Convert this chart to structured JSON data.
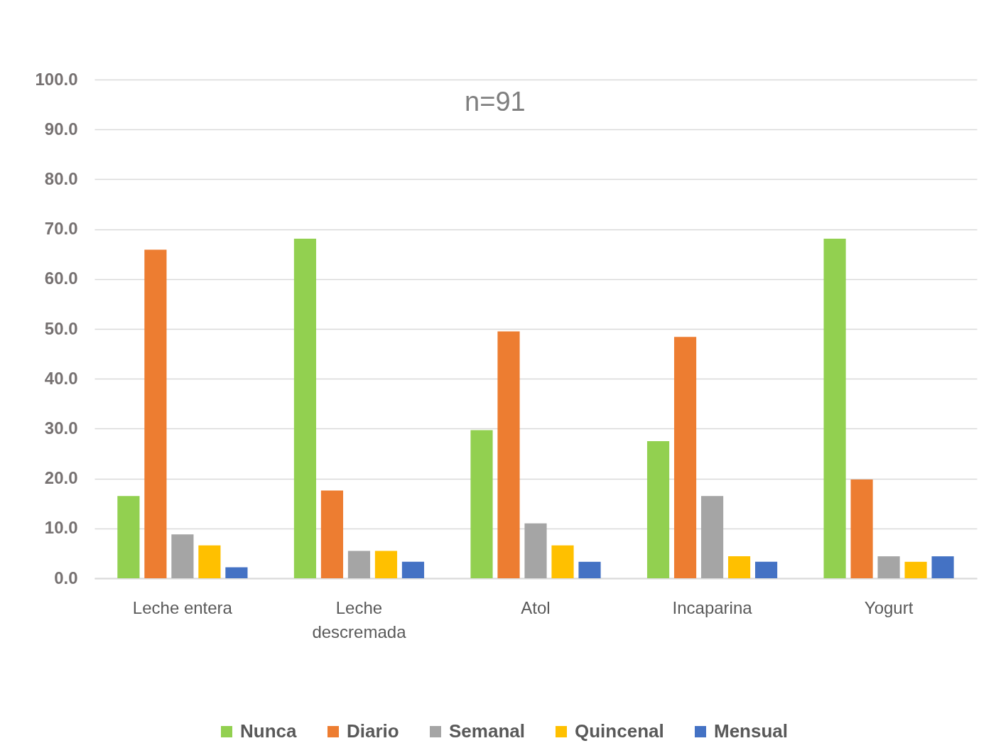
{
  "chart_data": {
    "type": "bar",
    "categories": [
      "Leche entera",
      "Leche descremada",
      "Atol",
      "Incaparina",
      "Yogurt"
    ],
    "series": [
      {
        "name": "Nunca",
        "color": "#92d050",
        "values": [
          16.5,
          68.1,
          29.7,
          27.5,
          68.1
        ]
      },
      {
        "name": "Diario",
        "color": "#ed7d31",
        "values": [
          65.9,
          17.6,
          49.5,
          48.4,
          19.8
        ]
      },
      {
        "name": "Semanal",
        "color": "#a5a5a5",
        "values": [
          8.8,
          5.5,
          11.0,
          16.5,
          4.4
        ]
      },
      {
        "name": "Quincenal",
        "color": "#ffc000",
        "values": [
          6.6,
          5.5,
          6.6,
          4.4,
          3.3
        ]
      },
      {
        "name": "Mensual",
        "color": "#4472c4",
        "values": [
          2.2,
          3.3,
          3.3,
          3.3,
          4.4
        ]
      }
    ],
    "ylim": [
      0,
      100
    ],
    "yticks": [
      {
        "value": 0,
        "label": "0.0"
      },
      {
        "value": 10,
        "label": "10.0"
      },
      {
        "value": 20,
        "label": "20.0"
      },
      {
        "value": 30,
        "label": "30.0"
      },
      {
        "value": 40,
        "label": "40.0"
      },
      {
        "value": 50,
        "label": "50.0"
      },
      {
        "value": 60,
        "label": "60.0"
      },
      {
        "value": 70,
        "label": "70.0"
      },
      {
        "value": 80,
        "label": "80.0"
      },
      {
        "value": 90,
        "label": "90.0"
      },
      {
        "value": 100,
        "label": "100.0"
      }
    ],
    "annotations": [
      "n=91"
    ],
    "grid": "y",
    "legend": "bottom"
  }
}
